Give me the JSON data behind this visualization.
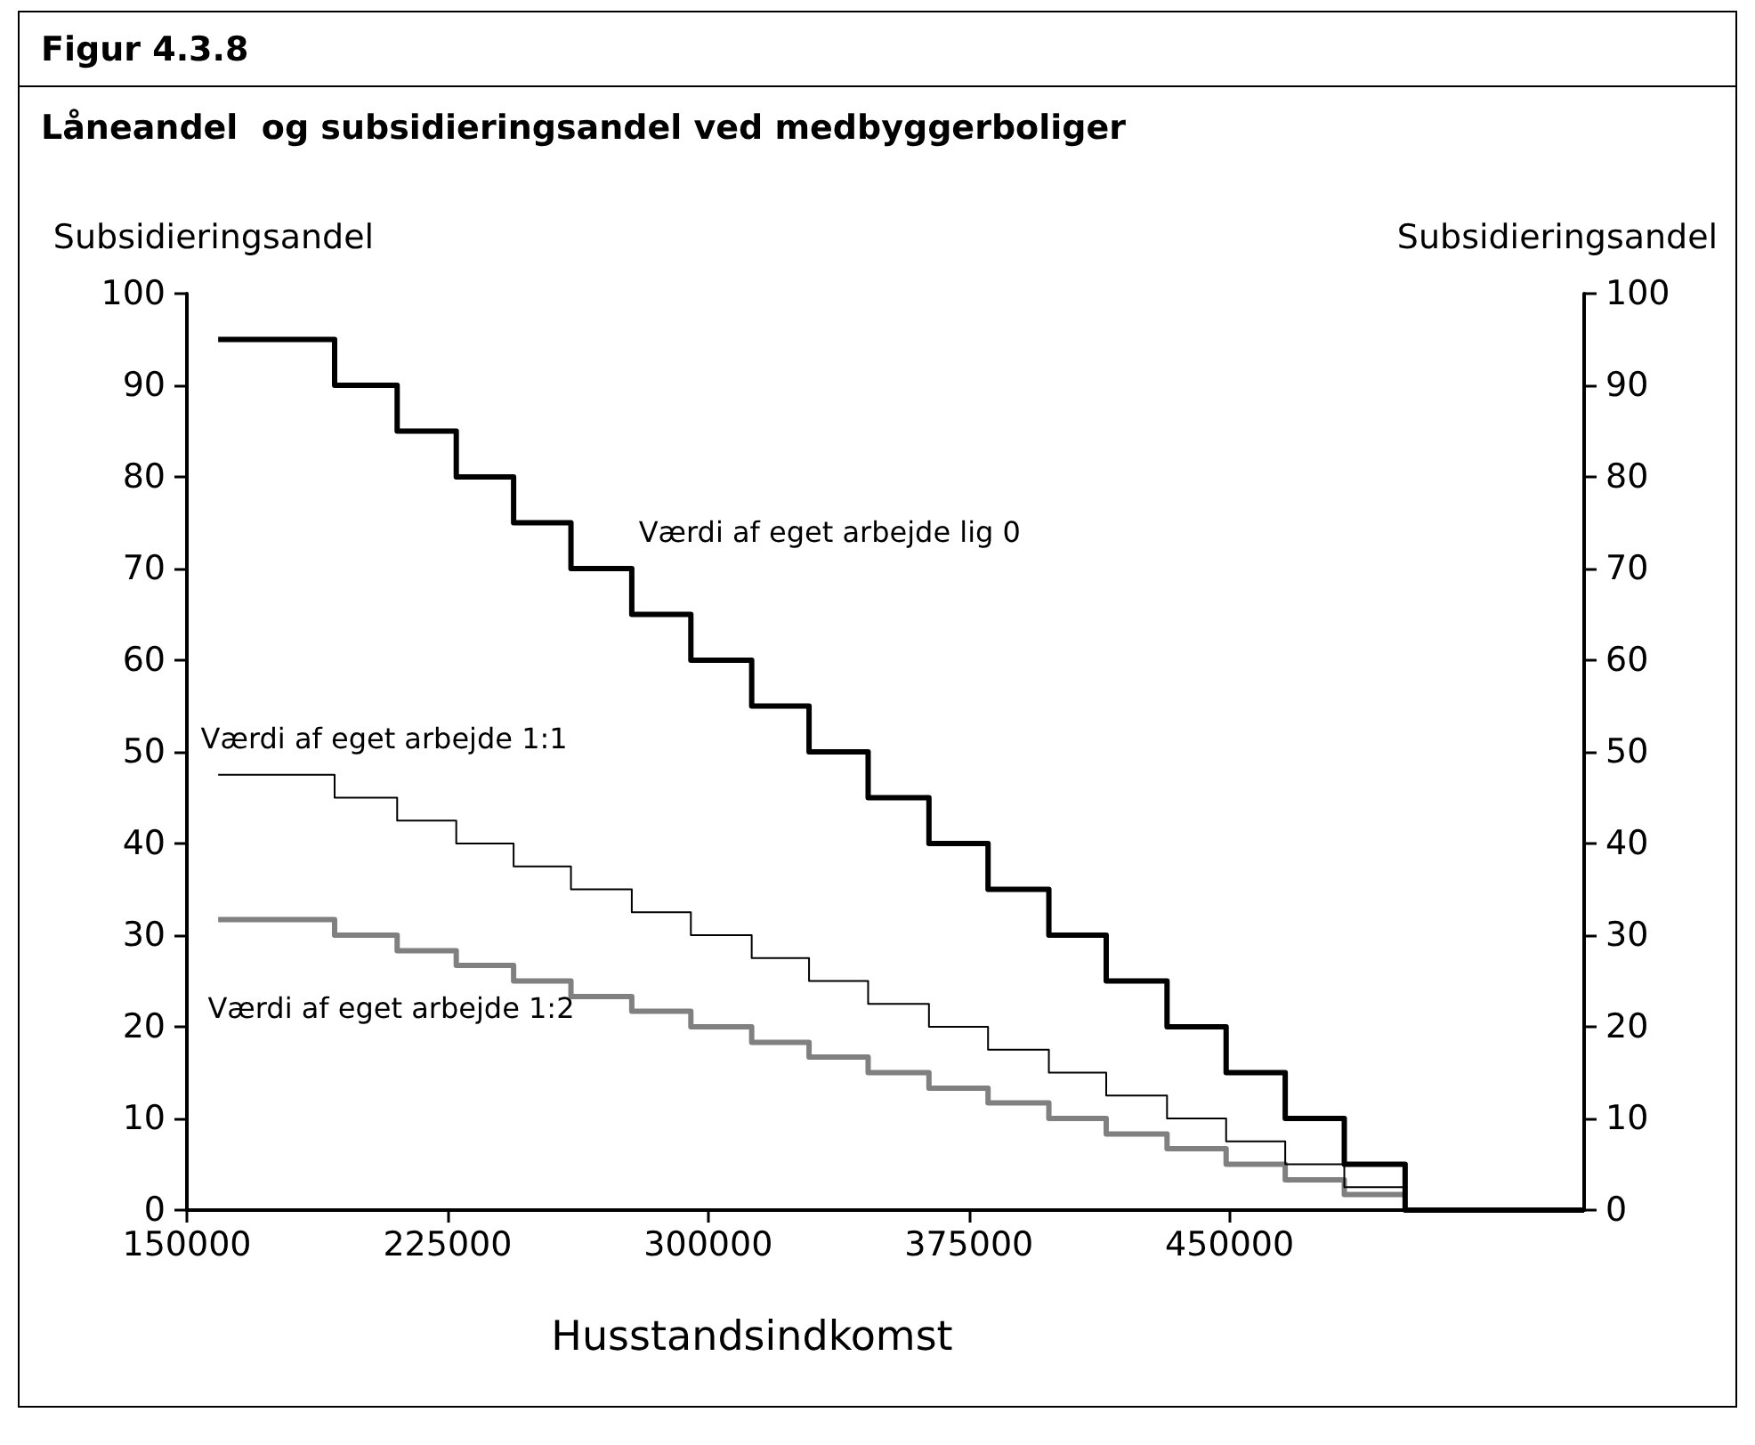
{
  "chart_data": {
    "type": "step",
    "title": "Figur 4.3.8",
    "subtitle": "Låneandel  og subsidieringsandel ved medbyggerboliger",
    "xlabel": "Husstandsindkomst",
    "ylabel": "Subsidieringsandel",
    "y2label": "Subsidieringsandel",
    "xlim": [
      150000,
      552000
    ],
    "xticks": [
      150000,
      225000,
      300000,
      375000,
      450000
    ],
    "ylim": [
      0,
      100
    ],
    "yticks": [
      0,
      10,
      20,
      30,
      40,
      50,
      60,
      70,
      80,
      90,
      100
    ],
    "y2lim": [
      0,
      100
    ],
    "y2ticks": [
      0,
      10,
      20,
      30,
      40,
      50,
      60,
      70,
      80,
      90,
      100
    ],
    "grid": false,
    "legend": false,
    "marker": "none",
    "line_style": "solid",
    "series": [
      {
        "name": "Værdi af eget arbejde lig 0",
        "color": "#000000",
        "x": [
          159000,
          192500,
          210500,
          227500,
          244000,
          260500,
          278000,
          295000,
          312500,
          329000,
          346000,
          363500,
          380500,
          398000,
          414500,
          432000,
          449000,
          466000,
          483000,
          500500,
          552000
        ],
        "values": [
          95,
          90,
          85,
          80,
          75,
          70,
          65,
          60,
          55,
          50,
          45,
          40,
          35,
          30,
          25,
          20,
          15,
          10,
          5,
          0,
          0
        ]
      },
      {
        "name": "Værdi af eget arbejde 1:1",
        "color": "#000000",
        "x": [
          159000,
          192500,
          210500,
          227500,
          244000,
          260500,
          278000,
          295000,
          312500,
          329000,
          346000,
          363500,
          380500,
          398000,
          414500,
          432000,
          449000,
          466000,
          483000,
          500500
        ],
        "values": [
          47.5,
          45,
          42.5,
          40,
          37.5,
          35,
          32.5,
          30,
          27.5,
          25,
          22.5,
          20,
          17.5,
          15,
          12.5,
          10,
          7.5,
          5,
          2.5,
          2.5
        ]
      },
      {
        "name": "Værdi af eget arbejde 1:2",
        "color": "#808080",
        "x": [
          159000,
          192500,
          210500,
          227500,
          244000,
          260500,
          278000,
          295000,
          312500,
          329000,
          346000,
          363500,
          380500,
          398000,
          414500,
          432000,
          449000,
          466000,
          483000,
          500500
        ],
        "values": [
          31.7,
          30,
          28.3,
          26.7,
          25,
          23.3,
          21.7,
          20,
          18.3,
          16.7,
          15,
          13.3,
          11.7,
          10,
          8.3,
          6.7,
          5,
          3.3,
          1.7,
          1.7
        ]
      }
    ]
  }
}
